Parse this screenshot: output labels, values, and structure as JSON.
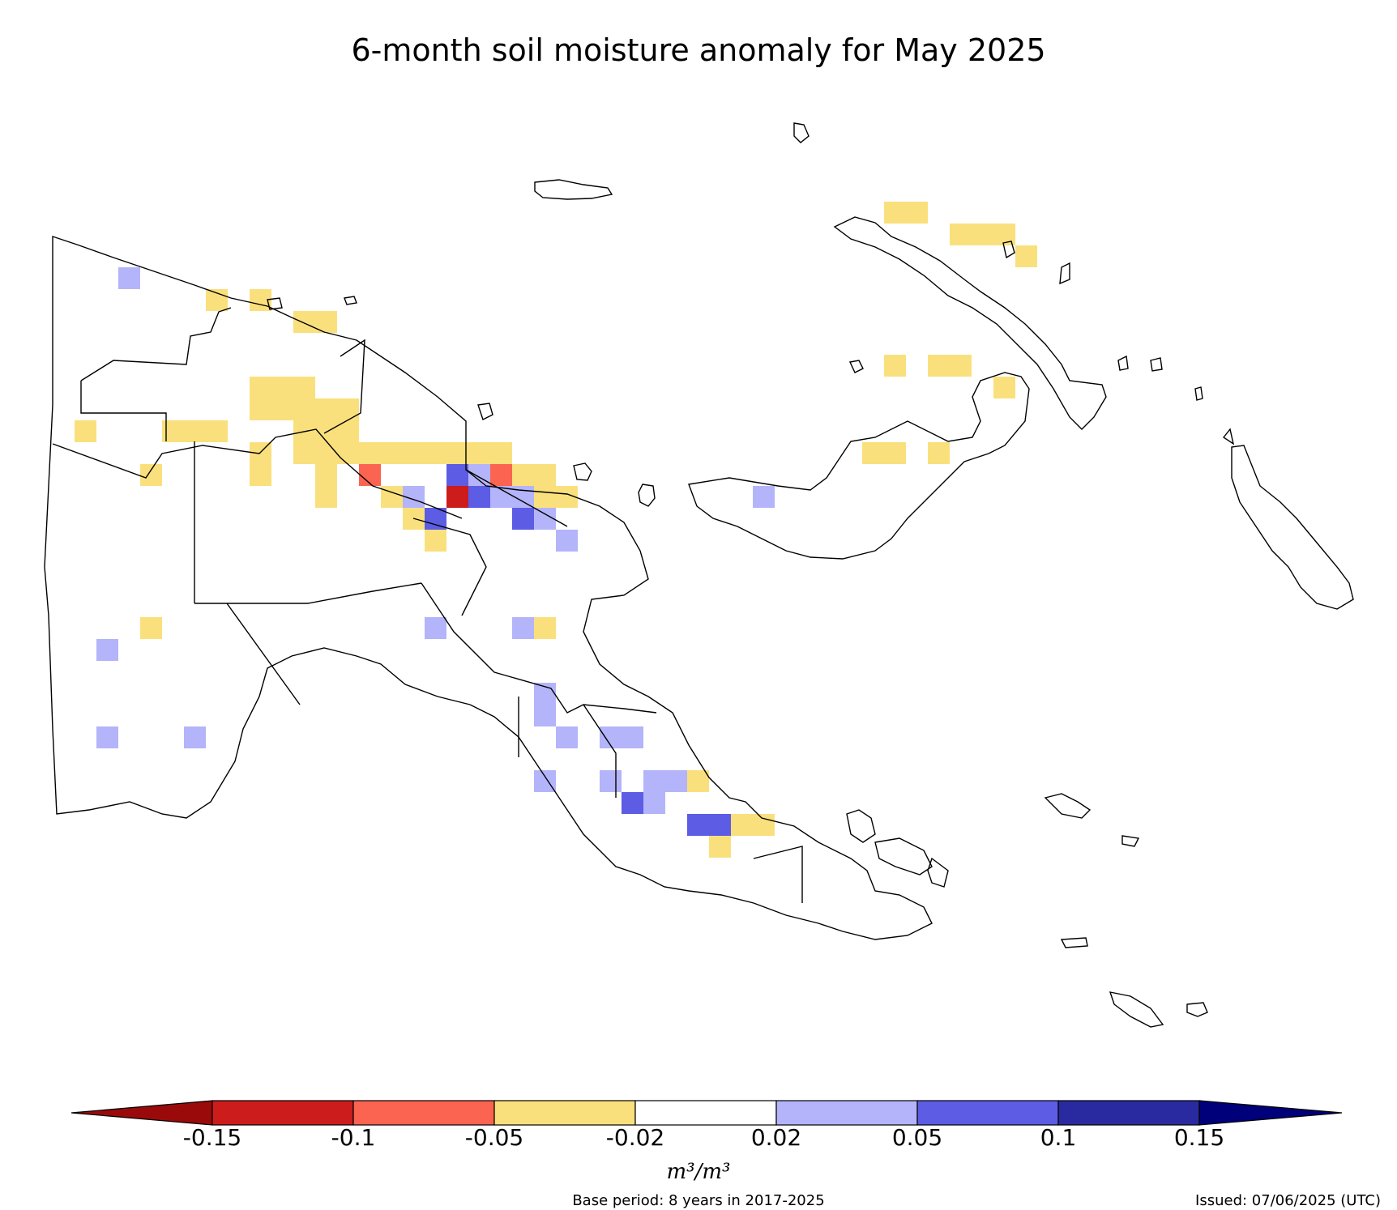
{
  "title": "6-month soil moisture anomaly for May 2025",
  "colorbar": {
    "tick_labels": [
      "-0.15",
      "-0.1",
      "-0.05",
      "-0.02",
      "0.02",
      "0.05",
      "0.1",
      "0.15"
    ],
    "colors": [
      "#9a0a0a",
      "#cc1c1c",
      "#fa6450",
      "#fae07c",
      "#ffffff",
      "#b4b4fa",
      "#5c5ce4",
      "#2a2aa0",
      "#00007a"
    ],
    "units": "m³/m³"
  },
  "base_period": "Base period: 8 years in 2017-2025",
  "issued": "Issued: 07/06/2025 (UTC)",
  "legend_classes": {
    "y": "-0.05 to -0.02",
    "o": "-0.1 to -0.05",
    "r": "-0.15 to -0.1",
    "l": "0.02 to 0.05",
    "b": "0.05 to 0.1"
  }
}
